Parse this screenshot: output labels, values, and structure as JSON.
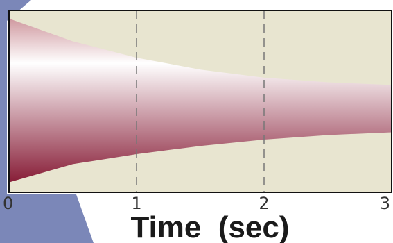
{
  "colors": {
    "plot_background": "#e8e5d0",
    "decor_blue": "#7b87b8",
    "envelope_top": "#c7868e",
    "envelope_mid": "#ffffff",
    "envelope_bottom": "#7d0a26",
    "frame": "#111111",
    "gridline": "#777777"
  },
  "chart_data": {
    "type": "area",
    "xlabel": "Time  (sec)",
    "ylabel": "",
    "title": "",
    "xlim": [
      0,
      3
    ],
    "ylim": [
      -1,
      1
    ],
    "xticks": [
      "0",
      "1",
      "2",
      "3"
    ],
    "grid": "dashed vertical lines at x = 1 and x = 2",
    "series": [
      {
        "x": [
          0,
          0.5,
          1,
          1.5,
          2,
          2.5,
          3
        ],
        "upper": [
          0.91,
          0.66,
          0.48,
          0.35,
          0.26,
          0.21,
          0.18
        ],
        "lower": [
          -0.89,
          -0.69,
          -0.58,
          -0.49,
          -0.42,
          -0.37,
          -0.34
        ]
      }
    ]
  }
}
